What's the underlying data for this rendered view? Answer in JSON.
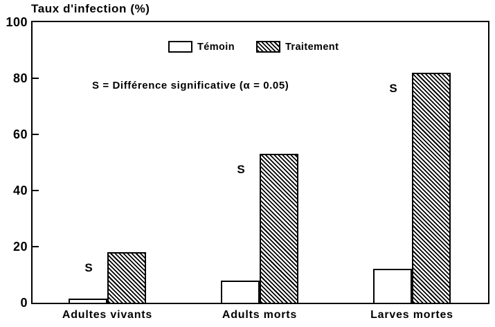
{
  "chart_data": {
    "type": "bar",
    "title": "Taux d'infection (%)",
    "categories": [
      "Adultes vivants",
      "Adults morts",
      "Larves mortes"
    ],
    "series": [
      {
        "name": "Témoin",
        "pattern": "plain",
        "values": [
          1.5,
          8,
          12
        ]
      },
      {
        "name": "Traitement",
        "pattern": "diagonal-hatch",
        "values": [
          18,
          53,
          82
        ]
      }
    ],
    "significance_markers": [
      "S",
      "S",
      "S"
    ],
    "annotation": "S = Différence significative (α = 0.05)",
    "xlabel": "",
    "ylabel": "Taux d'infection (%)",
    "ylim": [
      0,
      100
    ],
    "yticks": [
      0,
      20,
      40,
      60,
      80,
      100
    ],
    "grid": false,
    "legend_position": "inside-top-center",
    "colors": {
      "foreground": "#000000",
      "background": "#ffffff"
    }
  }
}
